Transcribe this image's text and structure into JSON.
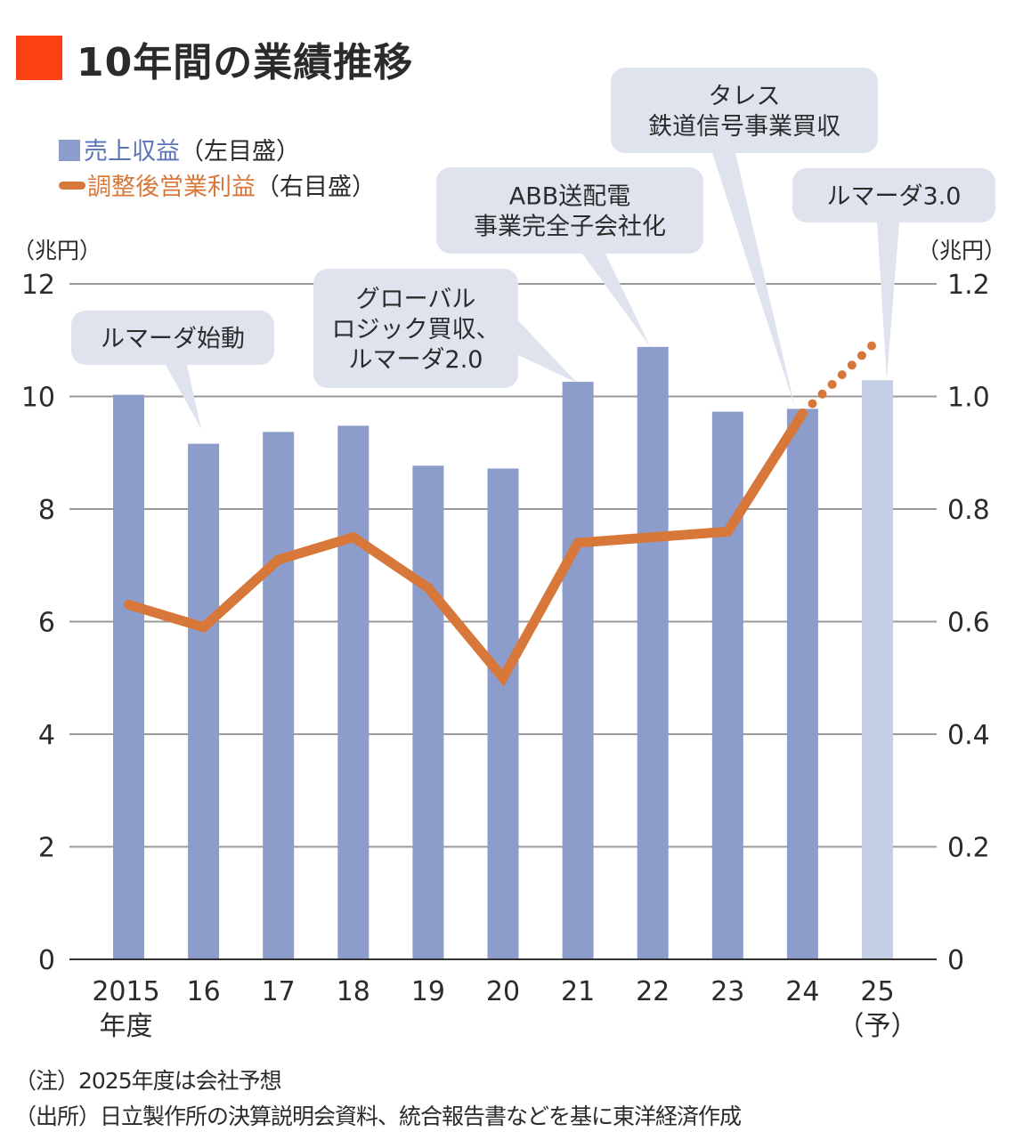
{
  "title": "10年間の業績推移",
  "colors": {
    "title_square": "#fb4013",
    "bar": "#8c9dcc",
    "bar_forecast": "#c5cfe6",
    "line": "#d8773a",
    "legend_bar_text": "#5b74b8",
    "legend_line_text": "#d8773a",
    "grid": "#9a9a9a",
    "axis": "#333333",
    "bubble": "#dfe3ee",
    "text": "#2b2b2b"
  },
  "legend": {
    "bar": {
      "name": "売上収益",
      "axis_note": "（左目盛）"
    },
    "line": {
      "name": "調整後営業利益",
      "axis_note": "（右目盛）"
    }
  },
  "units": {
    "left": "（兆円）",
    "right": "（兆円）"
  },
  "annotations": [
    {
      "text_lines": [
        "ルマーダ始動"
      ],
      "target_year": "16"
    },
    {
      "text_lines": [
        "グローバル",
        "ロジック買収、",
        "ルマーダ2.0"
      ],
      "target_year": "21"
    },
    {
      "text_lines": [
        "ABB送配電",
        "事業完全子会社化"
      ],
      "target_year": "22"
    },
    {
      "text_lines": [
        "タレス",
        "鉄道信号事業買収"
      ],
      "target_year": "24"
    },
    {
      "text_lines": [
        "ルマーダ3.0"
      ],
      "target_year": "25"
    }
  ],
  "footer": {
    "note": "（注）2025年度は会社予想",
    "source": "（出所）日立製作所の決算説明会資料、統合報告書などを基に東洋経済作成"
  },
  "chart_data": {
    "type": "bar+line",
    "title": "10年間の業績推移",
    "categories": [
      "2015",
      "16",
      "17",
      "18",
      "19",
      "20",
      "21",
      "22",
      "23",
      "24",
      "25"
    ],
    "category_sublabels": [
      "年度",
      "",
      "",
      "",
      "",
      "",
      "",
      "",
      "",
      "",
      "（予）"
    ],
    "forecast_index": 10,
    "series": [
      {
        "name": "売上収益",
        "type": "bar",
        "axis": "left",
        "unit": "兆円",
        "values": [
          10.03,
          9.16,
          9.37,
          9.48,
          8.77,
          8.72,
          10.26,
          10.88,
          9.73,
          9.78,
          10.29
        ]
      },
      {
        "name": "調整後営業利益",
        "type": "line",
        "axis": "right",
        "unit": "兆円",
        "values": [
          0.63,
          0.59,
          0.71,
          0.75,
          0.66,
          0.5,
          0.74,
          0.75,
          0.76,
          0.97,
          1.1
        ],
        "forecast_style": "dotted"
      }
    ],
    "y_left": {
      "range": [
        0,
        12
      ],
      "ticks": [
        "0",
        "2",
        "4",
        "6",
        "8",
        "10",
        "12"
      ],
      "label": "（兆円）"
    },
    "y_right": {
      "range": [
        0,
        1.2
      ],
      "ticks": [
        "0",
        "0.2",
        "0.4",
        "0.6",
        "0.8",
        "1.0",
        "1.2"
      ],
      "label": "（兆円）"
    },
    "grid": true,
    "legend_position": "top-left"
  }
}
